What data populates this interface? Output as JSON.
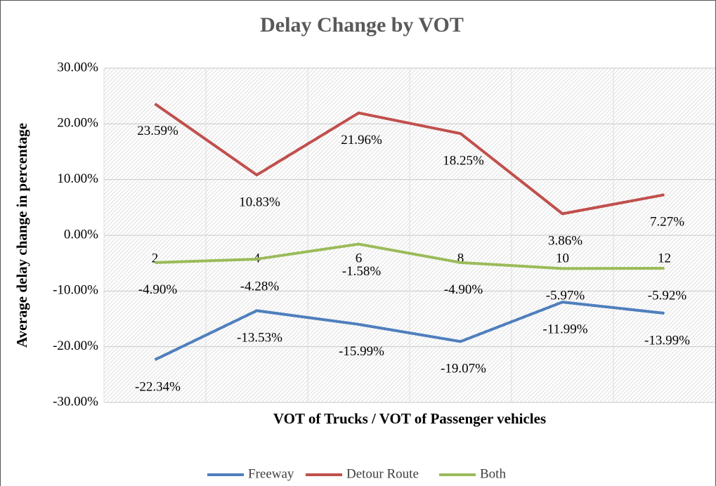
{
  "chart_data": {
    "type": "line",
    "title": "Delay Change by VOT",
    "x_label": "VOT of Trucks / VOT of Passenger vehicles",
    "y_label": "Average delay change in percentage",
    "categories": [
      "2",
      "4",
      "6",
      "8",
      "10",
      "12"
    ],
    "series": [
      {
        "name": "Freeway",
        "color": "#4f7fbd",
        "values": [
          -22.34,
          -13.53,
          -15.99,
          -19.07,
          -11.99,
          -13.99
        ],
        "value_labels": [
          "-22.34%",
          "-13.53%",
          "-15.99%",
          "-19.07%",
          "-11.99%",
          "-13.99%"
        ]
      },
      {
        "name": "Detour Route",
        "color": "#c0504d",
        "values": [
          23.59,
          10.83,
          21.96,
          18.25,
          3.86,
          7.27
        ],
        "value_labels": [
          "23.59%",
          "10.83%",
          "21.96%",
          "18.25%",
          "3.86%",
          "7.27%"
        ]
      },
      {
        "name": "Both",
        "color": "#9bbb59",
        "values": [
          -4.9,
          -4.28,
          -1.58,
          -4.9,
          -5.97,
          -5.92
        ],
        "value_labels": [
          "-4.90%",
          "-4.28%",
          "-1.58%",
          "-4.90%",
          "-5.97%",
          "-5.92%"
        ]
      }
    ],
    "ylim": [
      -30,
      30
    ],
    "yticks": [
      {
        "value": -30,
        "label": "-30.00%"
      },
      {
        "value": -20,
        "label": "-20.00%"
      },
      {
        "value": -10,
        "label": "-10.00%"
      },
      {
        "value": 0,
        "label": "0.00%"
      },
      {
        "value": 10,
        "label": "10.00%"
      },
      {
        "value": 20,
        "label": "20.00%"
      },
      {
        "value": 30,
        "label": "30.00%"
      }
    ],
    "grid": true,
    "legend": "bottom"
  }
}
